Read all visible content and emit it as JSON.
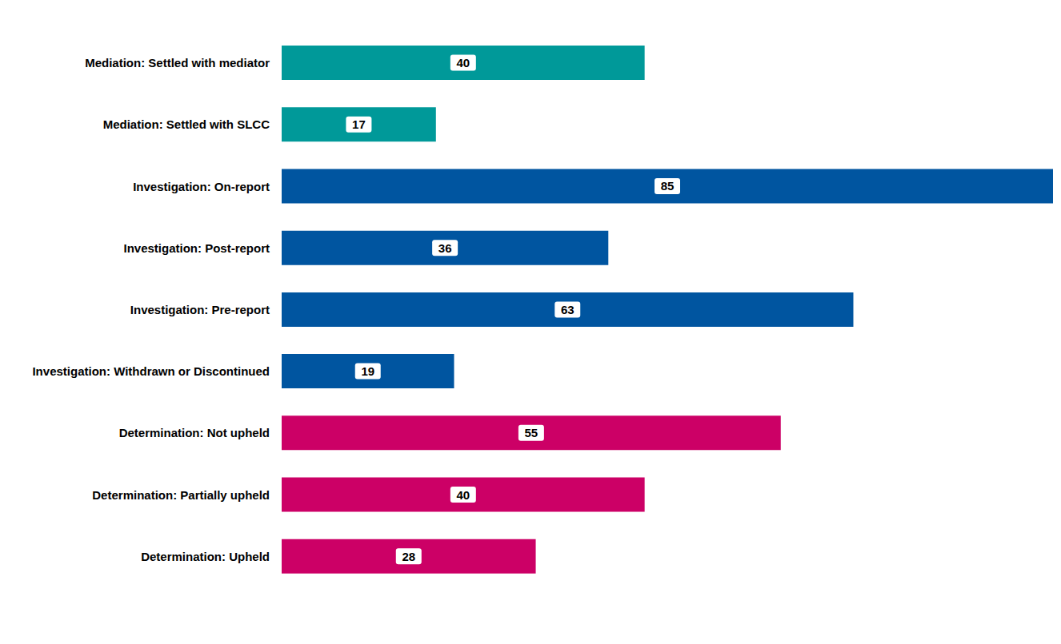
{
  "chart_data": {
    "type": "bar",
    "orientation": "horizontal",
    "categories": [
      "Mediation: Settled with mediator",
      "Mediation: Settled with SLCC",
      "Investigation: On-report",
      "Investigation: Post-report",
      "Investigation: Pre-report",
      "Investigation: Withdrawn or Discontinued",
      "Determination: Not upheld",
      "Determination: Partially upheld",
      "Determination: Upheld"
    ],
    "values": [
      40,
      17,
      85,
      36,
      63,
      19,
      55,
      40,
      28
    ],
    "colors": [
      "#009999",
      "#009999",
      "#0055a0",
      "#0055a0",
      "#0055a0",
      "#0055a0",
      "#cc0066",
      "#cc0066",
      "#cc0066"
    ],
    "xlim": [
      0,
      85
    ],
    "data_labels": true,
    "tick_labels": "y",
    "grid": false
  }
}
